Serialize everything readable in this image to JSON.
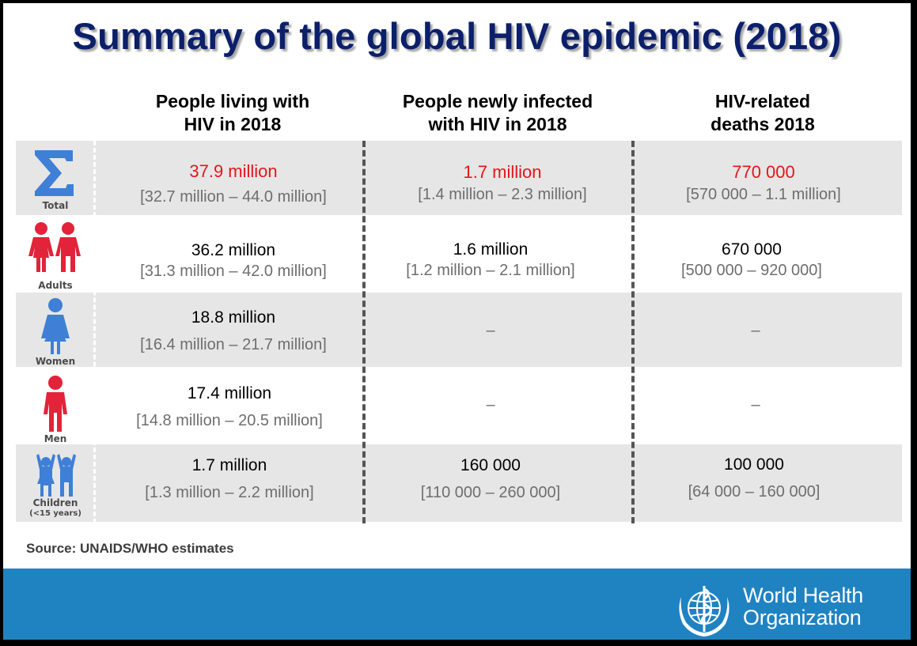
{
  "title": "Summary of the global HIV epidemic (2018)",
  "columns": [
    {
      "line1": "People living with",
      "line2": "HIV in 2018"
    },
    {
      "line1": "People newly infected",
      "line2": "with HIV in 2018"
    },
    {
      "line1": "HIV-related",
      "line2": "deaths 2018"
    }
  ],
  "rows": [
    {
      "label": "Total",
      "icon": "sigma-icon",
      "c1": {
        "value": "37.9 million",
        "range": "[32.7 million – 44.0 million]"
      },
      "c2": {
        "value": "1.7 million",
        "range": "[1.4 million – 2.3 million]"
      },
      "c3": {
        "value": "770 000",
        "range": "[570 000 – 1.1 million]"
      }
    },
    {
      "label": "Adults",
      "icon": "adults-icon",
      "c1": {
        "value": "36.2 million",
        "range": "[31.3 million – 42.0 million]"
      },
      "c2": {
        "value": "1.6 million",
        "range": "[1.2 million – 2.1 million]"
      },
      "c3": {
        "value": "670 000",
        "range": "[500 000 – 920 000]"
      }
    },
    {
      "label": "Women",
      "icon": "woman-icon",
      "c1": {
        "value": "18.8 million",
        "range": "[16.4 million – 21.7 million]"
      },
      "c2": {
        "dash": "–"
      },
      "c3": {
        "dash": "–"
      }
    },
    {
      "label": "Men",
      "icon": "man-icon",
      "c1": {
        "value": "17.4 million",
        "range": "[14.8 million – 20.5 million]"
      },
      "c2": {
        "dash": "–"
      },
      "c3": {
        "dash": "–"
      }
    },
    {
      "label": "Children",
      "label2": "(<15 years)",
      "icon": "children-icon",
      "c1": {
        "value": "1.7 million",
        "range": "[1.3 million – 2.2 million]"
      },
      "c2": {
        "value": "160 000",
        "range": "[110 000 – 260 000]"
      },
      "c3": {
        "value": "100 000",
        "range": "[64 000 – 160 000]"
      }
    }
  ],
  "source": "Source: UNAIDS/WHO  estimates",
  "footer": {
    "org_line1": "World Health",
    "org_line2": "Organization"
  },
  "colors": {
    "title": "#0b1f6b",
    "highlight": "#e8141b",
    "footer": "#1f83c2",
    "icon_blue": "#3f7fd6",
    "icon_red": "#e2233a"
  }
}
